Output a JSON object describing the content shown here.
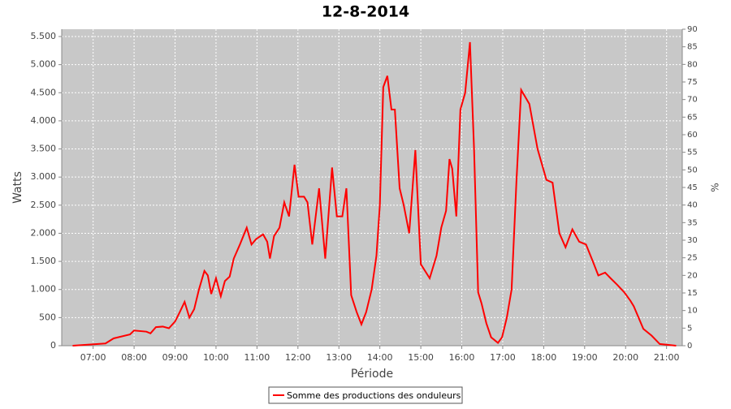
{
  "chart_data": {
    "type": "line",
    "title": "12-8-2014",
    "x_label": "Période",
    "y_label": "Watts",
    "y2_label": "%",
    "xlim": [
      "06:14",
      "21:23"
    ],
    "xticks": [
      "07:00",
      "08:00",
      "09:00",
      "10:00",
      "11:00",
      "12:00",
      "13:00",
      "14:00",
      "15:00",
      "16:00",
      "17:00",
      "18:00",
      "19:00",
      "20:00",
      "21:00"
    ],
    "ylim": [
      0,
      5630
    ],
    "yticks": [
      0,
      500,
      {
        "value": 1000,
        "label": "1.000"
      },
      {
        "value": 1500,
        "label": "1.500"
      },
      {
        "value": 2000,
        "label": "2.000"
      },
      {
        "value": 2500,
        "label": "2.500"
      },
      {
        "value": 3000,
        "label": "3.000"
      },
      {
        "value": 3500,
        "label": "3.500"
      },
      {
        "value": 4000,
        "label": "4.000"
      },
      {
        "value": 4500,
        "label": "4.500"
      },
      {
        "value": 5000,
        "label": "5.000"
      },
      {
        "value": 5500,
        "label": "5.500"
      }
    ],
    "y2lim": [
      0,
      90
    ],
    "y2ticks": [
      0,
      5,
      10,
      15,
      20,
      25,
      30,
      35,
      40,
      45,
      50,
      55,
      60,
      65,
      70,
      75,
      80,
      85,
      90
    ],
    "grid": true,
    "legend": "bottom",
    "x": [
      "06:30",
      "07:18",
      "07:30",
      "07:54",
      "08:00",
      "08:18",
      "08:24",
      "08:32",
      "08:42",
      "08:51",
      "09:00",
      "09:07",
      "09:14",
      "09:21",
      "09:28",
      "09:35",
      "09:43",
      "09:48",
      "09:53",
      "10:00",
      "10:07",
      "10:13",
      "10:20",
      "10:26",
      "10:35",
      "10:45",
      "10:52",
      "10:59",
      "11:09",
      "11:15",
      "11:19",
      "11:25",
      "11:33",
      "11:40",
      "11:47",
      "11:55",
      "12:01",
      "12:09",
      "12:14",
      "12:21",
      "12:31",
      "12:40",
      "12:50",
      "12:57",
      "13:05",
      "13:11",
      "13:18",
      "13:26",
      "13:33",
      "13:40",
      "13:48",
      "13:55",
      "14:00",
      "14:05",
      "14:11",
      "14:17",
      "14:22",
      "14:29",
      "14:35",
      "14:43",
      "14:52",
      "15:00",
      "15:13",
      "15:23",
      "15:30",
      "15:37",
      "15:42",
      "15:46",
      "15:52",
      "15:58",
      "16:05",
      "16:12",
      "16:18",
      "16:24",
      "16:29",
      "16:36",
      "16:43",
      "16:48",
      "16:53",
      "16:59",
      "17:06",
      "17:13",
      "17:20",
      "17:27",
      "17:39",
      "17:51",
      "18:04",
      "18:13",
      "18:23",
      "18:32",
      "18:42",
      "18:52",
      "19:02",
      "19:12",
      "19:20",
      "19:30",
      "19:38",
      "19:48",
      "19:58",
      "20:07",
      "20:12",
      "20:26",
      "20:38",
      "20:50",
      "21:14"
    ],
    "series": [
      {
        "name": "Somme des productions des onduleurs",
        "color": "#ff0000",
        "values": [
          0,
          40,
          130,
          200,
          270,
          250,
          220,
          330,
          340,
          310,
          430,
          600,
          780,
          500,
          650,
          1000,
          1330,
          1250,
          920,
          1200,
          880,
          1150,
          1230,
          1550,
          1800,
          2100,
          1800,
          1900,
          1980,
          1850,
          1550,
          1950,
          2100,
          2550,
          2300,
          3220,
          2650,
          2650,
          2550,
          1800,
          2800,
          1550,
          3170,
          2300,
          2300,
          2800,
          900,
          600,
          380,
          600,
          1000,
          1600,
          2500,
          4600,
          4800,
          4200,
          4200,
          2800,
          2500,
          2000,
          3480,
          1450,
          1200,
          1600,
          2100,
          2400,
          3320,
          3150,
          2300,
          4200,
          4500,
          5400,
          3500,
          950,
          750,
          400,
          150,
          100,
          50,
          150,
          500,
          1000,
          2900,
          4550,
          4300,
          3500,
          2950,
          2900,
          2000,
          1750,
          2070,
          1850,
          1800,
          1500,
          1250,
          1300,
          1200,
          1080,
          950,
          800,
          700,
          300,
          180,
          30,
          0
        ]
      }
    ]
  }
}
